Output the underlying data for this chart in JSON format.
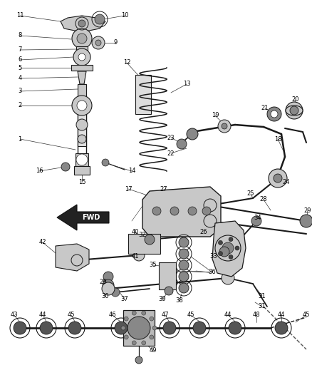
{
  "bg_color": "#ffffff",
  "fig_width": 4.38,
  "fig_height": 5.33,
  "dpi": 100,
  "line_color": "#1a1a1a",
  "gray_fill": "#c8c8c8",
  "dark_fill": "#555555",
  "mid_fill": "#888888"
}
